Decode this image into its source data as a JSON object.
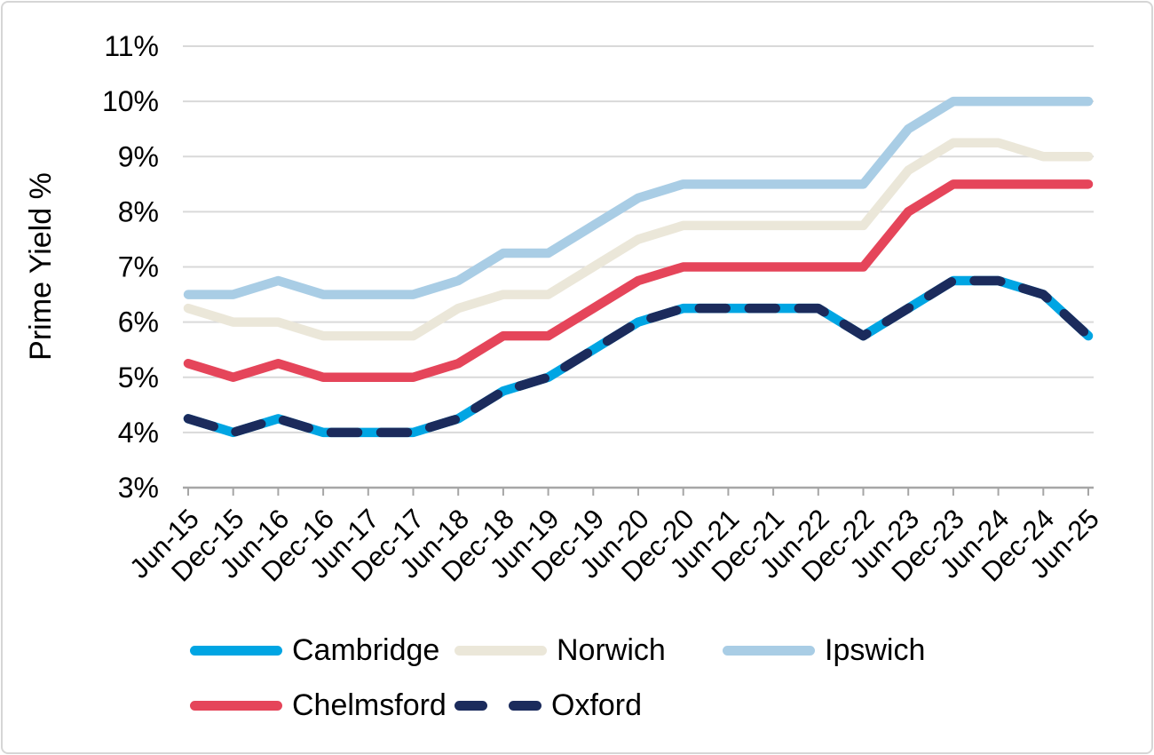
{
  "figure": {
    "background": "#FFFFFF",
    "border_color": "#D6D6D6"
  },
  "chart_data": {
    "type": "line",
    "title": "",
    "ylabel": "Prime Yield %",
    "xlabel": "",
    "ylim": [
      3,
      11
    ],
    "ytick_step": 1,
    "ytick_format": "{v}%",
    "ytick_labels": [
      "11%",
      "10%",
      "9%",
      "8%",
      "7%",
      "6%",
      "5%",
      "4%",
      "3%"
    ],
    "grid": true,
    "grid_color": "#D9D9D9",
    "axis_color": "#A6A6A6",
    "text_color": "#000000",
    "legend_position": "bottom",
    "categories": [
      "Jun-15",
      "Dec-15",
      "Jun-16",
      "Dec-16",
      "Jun-17",
      "Dec-17",
      "Jun-18",
      "Dec-18",
      "Jun-19",
      "Dec-19",
      "Jun-20",
      "Dec-20",
      "Jun-21",
      "Dec-21",
      "Jun-22",
      "Dec-22",
      "Jun-23",
      "Dec-23",
      "Jun-24",
      "Dec-24",
      "Jun-25"
    ],
    "series": [
      {
        "name": "Cambridge",
        "color": "#00A5E3",
        "style": "solid",
        "values": [
          4.25,
          4.0,
          4.25,
          4.0,
          4.0,
          4.0,
          4.25,
          4.75,
          5.0,
          5.5,
          6.0,
          6.25,
          6.25,
          6.25,
          6.25,
          5.75,
          6.25,
          6.75,
          6.75,
          6.5,
          5.75
        ]
      },
      {
        "name": "Norwich",
        "color": "#EBE7D9",
        "style": "solid",
        "values": [
          6.25,
          6.0,
          6.0,
          5.75,
          5.75,
          5.75,
          6.25,
          6.5,
          6.5,
          7.0,
          7.5,
          7.75,
          7.75,
          7.75,
          7.75,
          7.75,
          8.75,
          9.25,
          9.25,
          9.0,
          9.0
        ]
      },
      {
        "name": "Ipswich",
        "color": "#A9CDE5",
        "style": "solid",
        "values": [
          6.5,
          6.5,
          6.75,
          6.5,
          6.5,
          6.5,
          6.75,
          7.25,
          7.25,
          7.75,
          8.25,
          8.5,
          8.5,
          8.5,
          8.5,
          8.5,
          9.5,
          10.0,
          10.0,
          10.0,
          10.0
        ]
      },
      {
        "name": "Chelmsford",
        "color": "#E5455A",
        "style": "solid",
        "values": [
          5.25,
          5.0,
          5.25,
          5.0,
          5.0,
          5.0,
          5.25,
          5.75,
          5.75,
          6.25,
          6.75,
          7.0,
          7.0,
          7.0,
          7.0,
          7.0,
          8.0,
          8.5,
          8.5,
          8.5,
          8.5
        ]
      },
      {
        "name": "Oxford",
        "color": "#1B2B5C",
        "style": "dashed",
        "values": [
          4.25,
          4.0,
          4.25,
          4.0,
          4.0,
          4.0,
          4.25,
          4.75,
          5.0,
          5.5,
          6.0,
          6.25,
          6.25,
          6.25,
          6.25,
          5.75,
          6.25,
          6.75,
          6.75,
          6.5,
          5.75
        ]
      }
    ],
    "draw_order": [
      "Ipswich",
      "Norwich",
      "Chelmsford",
      "Cambridge",
      "Oxford"
    ],
    "legend_rows": [
      [
        "Cambridge",
        "Norwich",
        "Ipswich"
      ],
      [
        "Chelmsford",
        "Oxford"
      ]
    ]
  }
}
